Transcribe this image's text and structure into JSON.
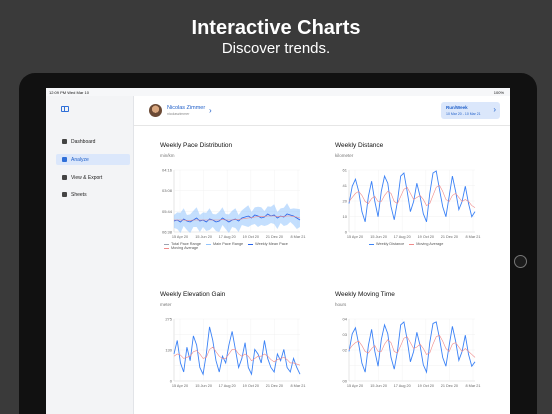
{
  "promo": {
    "headline": "Interactive Charts",
    "subline": "Discover trends."
  },
  "status": {
    "time": "12:09 PM   Wed Mar 10",
    "battery": "100%"
  },
  "sidebar": {
    "items": [
      {
        "label": "Dashboard",
        "icon": "grid-icon"
      },
      {
        "label": "Analyze",
        "icon": "chart-icon"
      },
      {
        "label": "View & Export",
        "icon": "list-icon"
      },
      {
        "label": "Sheets",
        "icon": "sheet-icon"
      }
    ]
  },
  "user": {
    "name": "Nicolas Zimmer",
    "handle": "nicolaszimmer"
  },
  "period": {
    "label": "Run/Week",
    "range": "10 Mar 20 - 10 Mar 21"
  },
  "colors": {
    "accent": "#2f6fd8",
    "series_blue": "#3b82f6",
    "series_red": "#f08a8a"
  },
  "chart_data": [
    {
      "type": "line",
      "title": "Weekly Pace Distribution",
      "ylabel": "min/km",
      "yticks": [
        "04:16",
        "03:08",
        "05:44",
        "06:38"
      ],
      "xticks": [
        "15 Apr 20",
        "15 Jun 20",
        "17 Aug 20",
        "19 Oct 20",
        "21 Dec 20",
        "8 Mar 21"
      ],
      "legend": [
        "Total Pace Range",
        "Main Pace Range",
        "Weekly Mean Pace",
        "Moving Average"
      ],
      "series": [
        {
          "values": [
            3.05,
            3.1,
            3.0,
            3.15,
            3.05,
            3.0,
            3.1,
            3.2,
            3.05,
            3.1,
            3.0,
            3.15,
            3.1,
            3.0,
            3.05,
            3.2,
            3.1,
            3.0,
            3.1,
            3.15,
            3.05,
            3.2,
            3.25,
            3.3,
            3.2,
            3.35,
            3.3,
            3.2,
            3.25,
            3.4,
            3.3,
            3.35,
            3.2,
            3.3,
            3.25,
            3.4,
            3.35,
            3.3,
            3.2,
            3.1
          ]
        },
        {
          "values": [
            3.1,
            3.1,
            3.1,
            3.1,
            3.08,
            3.08,
            3.1,
            3.1,
            3.1,
            3.1,
            3.1,
            3.1,
            3.1,
            3.1,
            3.1,
            3.12,
            3.1,
            3.1,
            3.1,
            3.12,
            3.12,
            3.15,
            3.18,
            3.2,
            3.22,
            3.25,
            3.27,
            3.28,
            3.28,
            3.3,
            3.3,
            3.3,
            3.28,
            3.28,
            3.28,
            3.3,
            3.3,
            3.28,
            3.25,
            3.2
          ]
        }
      ],
      "ylim": [
        2.5,
        5.6
      ]
    },
    {
      "type": "line",
      "title": "Weekly Distance",
      "ylabel": "kilometer",
      "yticks": [
        "61",
        "41",
        "20",
        "10",
        "0"
      ],
      "xticks": [
        "15 Apr 20",
        "15 Jun 20",
        "17 Aug 20",
        "19 Oct 20",
        "21 Dec 20",
        "8 Mar 21"
      ],
      "legend": [
        "Weekly Distance",
        "Moving Average"
      ],
      "series": [
        {
          "values": [
            28,
            45,
            52,
            40,
            20,
            10,
            35,
            50,
            30,
            15,
            40,
            55,
            48,
            25,
            12,
            30,
            55,
            58,
            40,
            20,
            30,
            48,
            35,
            18,
            10,
            38,
            58,
            60,
            42,
            25,
            15,
            35,
            55,
            40,
            22,
            30,
            45,
            28,
            15,
            20
          ]
        },
        {
          "values": [
            30,
            34,
            38,
            40,
            36,
            30,
            28,
            33,
            35,
            30,
            30,
            36,
            40,
            38,
            30,
            28,
            35,
            42,
            44,
            38,
            32,
            34,
            36,
            32,
            26,
            28,
            36,
            44,
            46,
            40,
            32,
            30,
            36,
            38,
            34,
            30,
            32,
            30,
            26,
            24
          ]
        }
      ],
      "ylim": [
        0,
        61
      ]
    },
    {
      "type": "line",
      "title": "Weekly Elevation Gain",
      "ylabel": "meter",
      "yticks": [
        "275",
        "",
        "130",
        "",
        "0"
      ],
      "xticks": [
        "15 Apr 20",
        "15 Jun 20",
        "17 Aug 20",
        "19 Oct 20",
        "21 Dec 20",
        "8 Mar 21"
      ],
      "legend": [],
      "series": [
        {
          "values": [
            120,
            180,
            80,
            40,
            150,
            90,
            200,
            160,
            60,
            30,
            120,
            240,
            180,
            90,
            40,
            110,
            80,
            160,
            220,
            140,
            60,
            100,
            170,
            60,
            30,
            140,
            120,
            80,
            180,
            100,
            60,
            40,
            120,
            90,
            140,
            60,
            40,
            100,
            60,
            30
          ]
        },
        {
          "values": [
            110,
            120,
            115,
            100,
            105,
            110,
            130,
            135,
            120,
            100,
            105,
            140,
            150,
            130,
            110,
            100,
            100,
            120,
            140,
            140,
            120,
            110,
            120,
            110,
            90,
            100,
            110,
            110,
            120,
            110,
            95,
            85,
            95,
            100,
            105,
            95,
            80,
            80,
            75,
            70
          ]
        }
      ],
      "ylim": [
        0,
        275
      ]
    },
    {
      "type": "line",
      "title": "Weekly Moving Time",
      "ylabel": "hours",
      "yticks": [
        "04",
        "03",
        "02",
        "",
        "00"
      ],
      "xticks": [
        "15 Apr 20",
        "15 Jun 20",
        "17 Aug 20",
        "19 Oct 20",
        "21 Dec 20",
        "8 Mar 21"
      ],
      "legend": [],
      "series": [
        {
          "values": [
            2.0,
            3.2,
            3.6,
            2.5,
            1.2,
            0.6,
            2.4,
            3.5,
            2.0,
            1.0,
            2.8,
            3.8,
            3.2,
            1.6,
            0.8,
            2.0,
            3.8,
            4.0,
            2.8,
            1.3,
            2.0,
            3.3,
            2.4,
            1.1,
            0.6,
            2.6,
            3.9,
            4.0,
            2.9,
            1.6,
            1.0,
            2.4,
            3.7,
            2.7,
            1.4,
            2.0,
            3.1,
            1.8,
            1.0,
            1.3
          ]
        },
        {
          "values": [
            2.1,
            2.4,
            2.6,
            2.7,
            2.4,
            2.0,
            1.9,
            2.2,
            2.4,
            2.0,
            2.0,
            2.5,
            2.8,
            2.6,
            2.0,
            1.9,
            2.4,
            2.9,
            3.0,
            2.6,
            2.2,
            2.3,
            2.5,
            2.2,
            1.8,
            1.9,
            2.5,
            3.0,
            3.1,
            2.7,
            2.2,
            2.0,
            2.5,
            2.6,
            2.3,
            2.0,
            2.2,
            2.0,
            1.8,
            1.6
          ]
        }
      ],
      "ylim": [
        0,
        4.2
      ]
    }
  ]
}
